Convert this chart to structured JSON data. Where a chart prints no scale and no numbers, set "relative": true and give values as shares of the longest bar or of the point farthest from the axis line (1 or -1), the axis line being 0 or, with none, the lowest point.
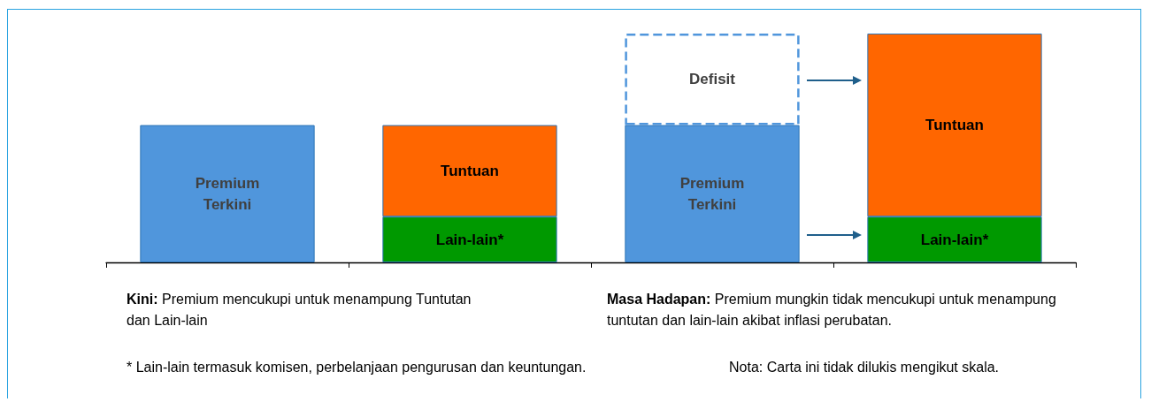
{
  "chart_data": {
    "type": "bar",
    "relative": true,
    "stacked": true,
    "grid": false,
    "categories": [
      null,
      null,
      null,
      null
    ],
    "series": [
      {
        "name": "Premium Terkini",
        "color": "#5096dc",
        "values": [
          0.6,
          null,
          0.6,
          null
        ]
      },
      {
        "name": "Lain-lain*",
        "color": "#009900",
        "values": [
          null,
          0.2,
          null,
          0.2
        ]
      },
      {
        "name": "Tuntuan",
        "color": "#ff6600",
        "values": [
          null,
          0.4,
          null,
          0.8
        ]
      },
      {
        "name": "Defisit",
        "color": "#5096dc",
        "line_style": "dashed",
        "values": [
          null,
          null,
          0.4,
          null
        ]
      }
    ],
    "annotations": [
      "Kini: Premium mencukupi untuk menampung Tuntutan dan Lain-lain",
      "Masa Hadapan: Premium mungkin tidak mencukupi untuk menampung tuntutan dan lain-lain akibat inflasi perubatan.",
      "* Lain-lain termasuk komisen, perbelanjaan pengurusan dan keuntungan.",
      "Nota: Carta ini tidak dilukis mengikut skala."
    ]
  }
}
